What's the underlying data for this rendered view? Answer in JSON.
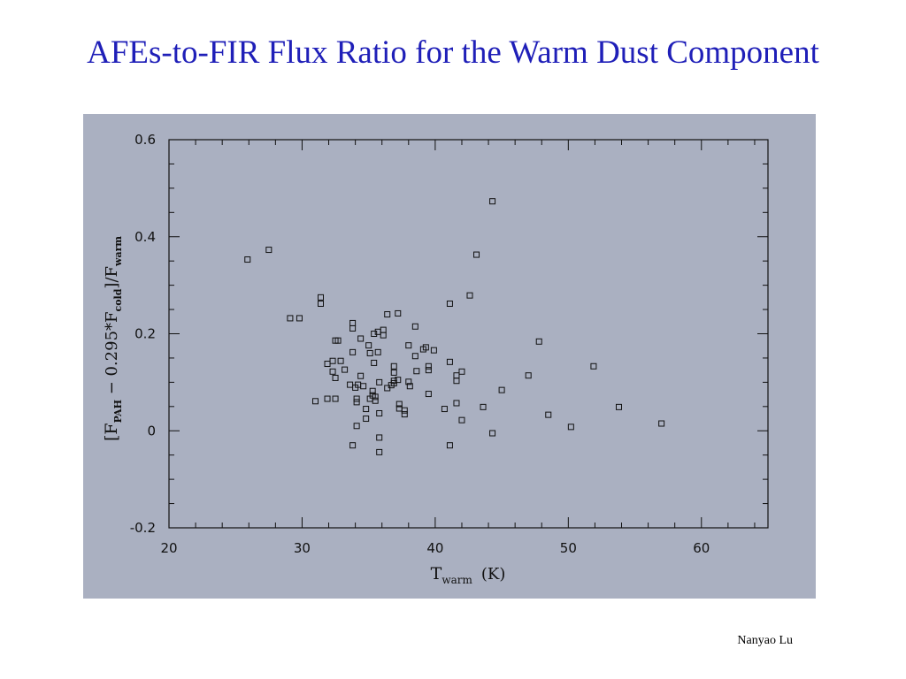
{
  "slide": {
    "title": "AFEs-to-FIR Flux Ratio for the Warm Dust Component",
    "author": "Nanyao Lu"
  },
  "colors": {
    "title": "#1f1fb8",
    "panel_background": "#aab0c1",
    "ink": "#111111"
  },
  "chart_data": {
    "type": "scatter",
    "title": "",
    "xlabel": {
      "main": "T",
      "sub": "warm",
      "unit": "(K)"
    },
    "ylabel": {
      "open": "[F",
      "sub1": "PAH",
      "mid": " − 0.295*F",
      "sub2": "cold",
      "close": "]/F",
      "sub3": "warm"
    },
    "xlim": [
      20,
      65
    ],
    "ylim": [
      -0.2,
      0.6
    ],
    "xticks": [
      20,
      30,
      40,
      50,
      60
    ],
    "yticks": [
      -0.2,
      0,
      0.2,
      0.4,
      0.6
    ],
    "ytick_labels": [
      "-0.2",
      "0",
      "0.2",
      "0.4",
      "0.6"
    ],
    "marker": "open-square",
    "grid": false,
    "points": [
      [
        25.9,
        0.353
      ],
      [
        27.5,
        0.373
      ],
      [
        29.1,
        0.232
      ],
      [
        29.8,
        0.232
      ],
      [
        31.0,
        0.061
      ],
      [
        31.4,
        0.275
      ],
      [
        31.4,
        0.262
      ],
      [
        31.9,
        0.138
      ],
      [
        31.9,
        0.066
      ],
      [
        32.3,
        0.144
      ],
      [
        32.3,
        0.122
      ],
      [
        32.5,
        0.066
      ],
      [
        32.5,
        0.109
      ],
      [
        32.5,
        0.186
      ],
      [
        32.7,
        0.186
      ],
      [
        32.9,
        0.144
      ],
      [
        33.2,
        0.126
      ],
      [
        33.6,
        0.095
      ],
      [
        33.8,
        0.222
      ],
      [
        33.8,
        0.211
      ],
      [
        33.8,
        0.162
      ],
      [
        33.8,
        -0.03
      ],
      [
        34.0,
        0.089
      ],
      [
        34.1,
        0.066
      ],
      [
        34.1,
        0.059
      ],
      [
        34.1,
        0.01
      ],
      [
        34.2,
        0.095
      ],
      [
        34.4,
        0.19
      ],
      [
        34.4,
        0.113
      ],
      [
        34.6,
        0.092
      ],
      [
        34.8,
        0.045
      ],
      [
        34.8,
        0.025
      ],
      [
        35.0,
        0.176
      ],
      [
        35.1,
        0.16
      ],
      [
        35.1,
        0.066
      ],
      [
        35.3,
        0.082
      ],
      [
        35.3,
        0.073
      ],
      [
        35.4,
        0.2
      ],
      [
        35.4,
        0.14
      ],
      [
        35.5,
        0.07
      ],
      [
        35.5,
        0.062
      ],
      [
        35.7,
        0.204
      ],
      [
        35.7,
        0.162
      ],
      [
        35.8,
        0.1
      ],
      [
        35.8,
        0.036
      ],
      [
        35.8,
        -0.014
      ],
      [
        35.8,
        -0.044
      ],
      [
        36.1,
        0.208
      ],
      [
        36.1,
        0.197
      ],
      [
        36.4,
        0.24
      ],
      [
        36.4,
        0.088
      ],
      [
        36.7,
        0.094
      ],
      [
        36.9,
        0.133
      ],
      [
        36.9,
        0.12
      ],
      [
        36.9,
        0.103
      ],
      [
        36.9,
        0.098
      ],
      [
        37.2,
        0.242
      ],
      [
        37.2,
        0.105
      ],
      [
        37.3,
        0.055
      ],
      [
        37.3,
        0.046
      ],
      [
        37.7,
        0.042
      ],
      [
        37.7,
        0.034
      ],
      [
        38.0,
        0.176
      ],
      [
        38.0,
        0.101
      ],
      [
        38.1,
        0.092
      ],
      [
        38.5,
        0.215
      ],
      [
        38.5,
        0.154
      ],
      [
        38.6,
        0.123
      ],
      [
        39.1,
        0.168
      ],
      [
        39.3,
        0.172
      ],
      [
        39.5,
        0.133
      ],
      [
        39.5,
        0.125
      ],
      [
        39.5,
        0.076
      ],
      [
        39.9,
        0.166
      ],
      [
        40.7,
        0.045
      ],
      [
        41.1,
        0.262
      ],
      [
        41.1,
        0.142
      ],
      [
        41.1,
        -0.03
      ],
      [
        41.6,
        0.114
      ],
      [
        41.6,
        0.103
      ],
      [
        41.6,
        0.057
      ],
      [
        42.0,
        0.122
      ],
      [
        42.0,
        0.022
      ],
      [
        42.6,
        0.279
      ],
      [
        43.1,
        0.363
      ],
      [
        43.6,
        0.049
      ],
      [
        44.3,
        0.473
      ],
      [
        44.3,
        -0.005
      ],
      [
        45.0,
        0.084
      ],
      [
        47.0,
        0.114
      ],
      [
        47.8,
        0.184
      ],
      [
        48.5,
        0.033
      ],
      [
        50.2,
        0.008
      ],
      [
        51.9,
        0.133
      ],
      [
        53.8,
        0.049
      ],
      [
        57.0,
        0.015
      ]
    ]
  }
}
